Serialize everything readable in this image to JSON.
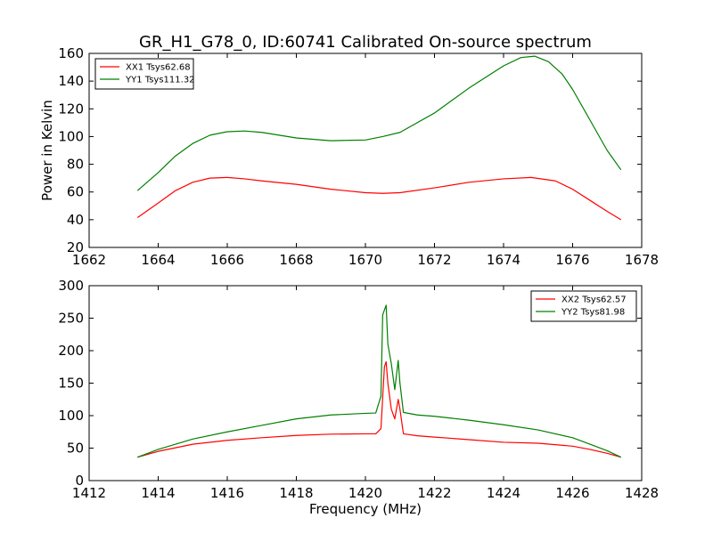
{
  "title": "GR_H1_G78_0, ID:60741 Calibrated On-source spectrum",
  "chart_data": [
    {
      "type": "line",
      "ylabel": "Power in Kelvin",
      "xlabel": "",
      "xlim": [
        1662,
        1678
      ],
      "ylim": [
        20,
        160
      ],
      "xticks": [
        "1662",
        "1664",
        "1666",
        "1668",
        "1670",
        "1672",
        "1674",
        "1676",
        "1678"
      ],
      "yticks": [
        "20",
        "40",
        "60",
        "80",
        "100",
        "120",
        "140",
        "160"
      ],
      "legend_position": "top-left",
      "series": [
        {
          "name": "XX1 Tsys62.68",
          "color": "#ff0000",
          "x": [
            1663.4,
            1664.0,
            1664.5,
            1665.0,
            1665.5,
            1666.0,
            1666.5,
            1667.0,
            1668.0,
            1669.0,
            1670.0,
            1670.5,
            1671.0,
            1672.0,
            1673.0,
            1674.0,
            1674.8,
            1675.5,
            1676.0,
            1676.5,
            1677.0,
            1677.4
          ],
          "y": [
            41.5,
            52,
            61,
            67,
            70,
            70.5,
            69.5,
            68,
            65.5,
            62,
            59.5,
            59,
            59.5,
            63,
            67,
            69.5,
            70.5,
            68,
            62,
            54,
            46,
            40
          ]
        },
        {
          "name": "YY1 Tsys111.32",
          "color": "#008000",
          "x": [
            1663.4,
            1664.0,
            1664.5,
            1665.0,
            1665.5,
            1666.0,
            1666.5,
            1667.0,
            1668.0,
            1669.0,
            1670.0,
            1670.5,
            1671.0,
            1672.0,
            1673.0,
            1674.0,
            1674.5,
            1674.9,
            1675.3,
            1675.7,
            1676.0,
            1676.5,
            1677.0,
            1677.4
          ],
          "y": [
            61,
            74,
            86,
            95,
            101,
            103.5,
            104,
            103,
            99,
            97,
            97.5,
            100,
            103,
            117,
            135,
            151,
            157,
            158,
            154,
            145,
            134,
            112,
            90,
            76
          ]
        }
      ]
    },
    {
      "type": "line",
      "ylabel": "",
      "xlabel": "Frequency (MHz)",
      "xlim": [
        1412,
        1428
      ],
      "ylim": [
        0,
        300
      ],
      "xticks": [
        "1412",
        "1414",
        "1416",
        "1418",
        "1420",
        "1422",
        "1424",
        "1426",
        "1428"
      ],
      "yticks": [
        "0",
        "50",
        "100",
        "150",
        "200",
        "250",
        "300"
      ],
      "legend_position": "top-right",
      "series": [
        {
          "name": "XX2 Tsys62.57",
          "color": "#ff0000",
          "x": [
            1413.4,
            1414.0,
            1415.0,
            1416.0,
            1417.0,
            1418.0,
            1419.0,
            1420.0,
            1420.3,
            1420.45,
            1420.55,
            1420.6,
            1420.65,
            1420.75,
            1420.85,
            1420.95,
            1421.0,
            1421.1,
            1421.5,
            1422.0,
            1423.0,
            1424.0,
            1425.0,
            1426.0,
            1426.5,
            1427.0,
            1427.4
          ],
          "y": [
            36,
            45,
            56,
            62,
            66,
            69.5,
            71.5,
            72,
            72,
            80,
            175,
            183,
            150,
            110,
            95,
            125,
            110,
            72,
            69,
            67,
            63,
            59,
            57.5,
            53,
            48,
            42,
            36
          ]
        },
        {
          "name": "YY2 Tsys81.98",
          "color": "#008000",
          "x": [
            1413.4,
            1414.0,
            1415.0,
            1416.0,
            1417.0,
            1418.0,
            1419.0,
            1420.0,
            1420.3,
            1420.45,
            1420.5,
            1420.6,
            1420.65,
            1420.75,
            1420.85,
            1420.95,
            1421.0,
            1421.1,
            1421.5,
            1422.0,
            1423.0,
            1424.0,
            1425.0,
            1426.0,
            1426.5,
            1427.0,
            1427.4
          ],
          "y": [
            36,
            48,
            64,
            75,
            85,
            95,
            101,
            103.5,
            104,
            130,
            255,
            270,
            210,
            180,
            140,
            185,
            150,
            105,
            101,
            99,
            93,
            86,
            78,
            66,
            56,
            46,
            36
          ]
        }
      ]
    }
  ]
}
